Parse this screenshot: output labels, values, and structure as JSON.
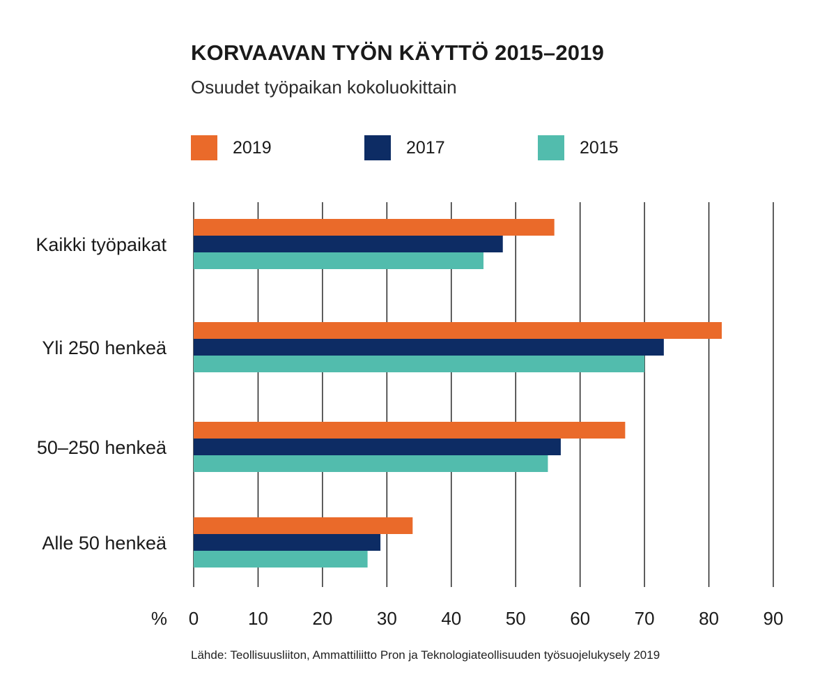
{
  "chart_data": {
    "type": "bar",
    "orientation": "horizontal",
    "title": "KORVAAVAN TYÖN KÄYTTÖ 2015–2019",
    "subtitle": "Osuudet työpaikan kokoluokittain",
    "categories": [
      "Kaikki työpaikat",
      "Yli 250 henkeä",
      "50–250 henkeä",
      "Alle 50 henkeä"
    ],
    "series": [
      {
        "name": "2019",
        "color": "#ea6a2a",
        "values": [
          56,
          82,
          67,
          34
        ]
      },
      {
        "name": "2017",
        "color": "#0d2c64",
        "values": [
          48,
          73,
          57,
          29
        ]
      },
      {
        "name": "2015",
        "color": "#52bcad",
        "values": [
          45,
          70,
          55,
          27
        ]
      }
    ],
    "xlabel": "%",
    "xlim": [
      0,
      90
    ],
    "xticks": [
      "0",
      "10",
      "20",
      "30",
      "40",
      "50",
      "60",
      "70",
      "80",
      "90"
    ],
    "grid": true,
    "legend_position": "top",
    "source": "Lähde: Teollisuusliiton, Ammattiliitto Pron ja Teknologiateollisuuden työsuojelukysely 2019"
  }
}
